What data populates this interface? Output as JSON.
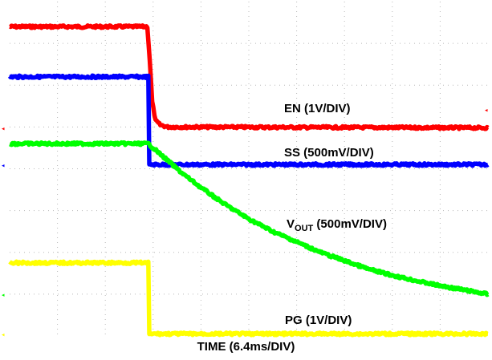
{
  "chart_data": {
    "type": "line",
    "xlabel": "TIME (6.4ms/DIV)",
    "x_unit": "divisions",
    "xlim": [
      0,
      10
    ],
    "ylim": [
      0,
      8
    ],
    "grid": true,
    "series": [
      {
        "name": "EN (1V/DIV)",
        "color": "#ff0000",
        "x": [
          0,
          2.88,
          2.93,
          2.98,
          3.05,
          3.15,
          3.3,
          10
        ],
        "y": [
          7.4,
          7.4,
          6.6,
          5.6,
          5.15,
          5.05,
          5.0,
          4.98
        ]
      },
      {
        "name": "SS (500mV/DIV)",
        "color": "#0000ff",
        "x": [
          0,
          2.9,
          2.92,
          10
        ],
        "y": [
          6.2,
          6.2,
          4.1,
          4.1
        ]
      },
      {
        "name": "VOUT (500mV/DIV)",
        "color": "#00ff00",
        "x": [
          0,
          2.9,
          3.2,
          3.6,
          4.0,
          4.5,
          5.0,
          5.5,
          6.0,
          6.5,
          7.0,
          7.5,
          8.0,
          8.5,
          9.0,
          9.5,
          10
        ],
        "y": [
          4.6,
          4.6,
          4.3,
          3.9,
          3.55,
          3.15,
          2.8,
          2.5,
          2.25,
          2.0,
          1.8,
          1.6,
          1.45,
          1.32,
          1.2,
          1.1,
          1.0
        ]
      },
      {
        "name": "PG (1V/DIV)",
        "color": "#ffff00",
        "x": [
          0,
          2.9,
          2.92,
          10
        ],
        "y": [
          1.75,
          1.75,
          0.05,
          0.05
        ]
      }
    ]
  },
  "labels": {
    "en": "EN (1V/DIV)",
    "ss": "SS (500mV/DIV)",
    "vout_main": "V",
    "vout_sub": "OUT",
    "vout_rest": " (500mV/DIV)",
    "pg": "PG (1V/DIV)"
  }
}
